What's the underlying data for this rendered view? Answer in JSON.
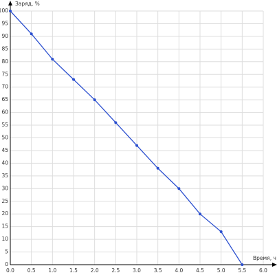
{
  "chart_data": {
    "type": "line",
    "y_label": "Заряд, %",
    "x_label": "Время, ч",
    "x": [
      0,
      0.5,
      1,
      1.5,
      2,
      2.5,
      3,
      3.5,
      4,
      4.5,
      5,
      5.5
    ],
    "series": [
      {
        "color": "#2b4fcf",
        "values": [
          100,
          91,
          81,
          73,
          65,
          56,
          47,
          38,
          30,
          20,
          13,
          0
        ]
      }
    ],
    "xlim": [
      0,
      6
    ],
    "ylim": [
      0,
      100
    ],
    "xticks": [
      {
        "value": 0,
        "label": "0.0"
      },
      0.5,
      {
        "value": 1,
        "label": "1.0"
      },
      1.5,
      {
        "value": 2,
        "label": "2.0"
      },
      2.5,
      {
        "value": 3,
        "label": "3.0"
      },
      3.5,
      {
        "value": 4,
        "label": "4.0"
      },
      4.5,
      {
        "value": 5,
        "label": "5.0"
      },
      5.5,
      {
        "value": 6,
        "label": "6.0"
      }
    ],
    "yticks": [
      0,
      5,
      10,
      15,
      20,
      25,
      30,
      35,
      40,
      45,
      50,
      55,
      60,
      65,
      70,
      75,
      80,
      85,
      90,
      95,
      100
    ],
    "grid": true
  }
}
